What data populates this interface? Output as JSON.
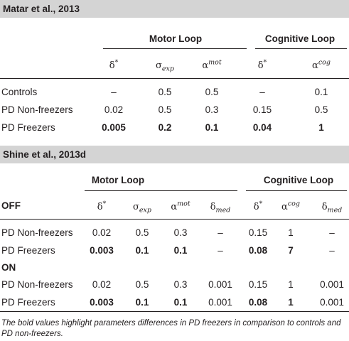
{
  "study1": {
    "title": "Matar et al., 2013",
    "group_motor": "Motor Loop",
    "group_cog": "Cognitive Loop",
    "headers": [
      {
        "base": "δ",
        "sup": "*",
        "sub": ""
      },
      {
        "base": "σ",
        "sup": "",
        "sub": "exp"
      },
      {
        "base": "α",
        "sup": "mot",
        "sub": ""
      },
      {
        "base": "δ",
        "sup": "*",
        "sub": ""
      },
      {
        "base": "α",
        "sup": "cog",
        "sub": ""
      }
    ],
    "rows": [
      {
        "label": "Controls",
        "values": [
          "–",
          "0.5",
          "0.5",
          "–",
          "0.1"
        ],
        "bold": [
          false,
          false,
          false,
          false,
          false
        ]
      },
      {
        "label": "PD Non-freezers",
        "values": [
          "0.02",
          "0.5",
          "0.3",
          "0.15",
          "0.5"
        ],
        "bold": [
          false,
          false,
          false,
          false,
          false
        ]
      },
      {
        "label": "PD Freezers",
        "values": [
          "0.005",
          "0.2",
          "0.1",
          "0.04",
          "1"
        ],
        "bold": [
          true,
          true,
          true,
          true,
          true
        ]
      }
    ]
  },
  "study2": {
    "title": "Shine et al., 2013d",
    "group_motor": "Motor Loop",
    "group_cog": "Cognitive Loop",
    "headers": [
      {
        "base": "δ",
        "sup": "*",
        "sub": ""
      },
      {
        "base": "σ",
        "sup": "",
        "sub": "exp"
      },
      {
        "base": "α",
        "sup": "mot",
        "sub": ""
      },
      {
        "base": "δ",
        "sup": "",
        "sub": "med"
      },
      {
        "base": "δ",
        "sup": "*",
        "sub": ""
      },
      {
        "base": "α",
        "sup": "cog",
        "sub": ""
      },
      {
        "base": "δ",
        "sup": "",
        "sub": "med"
      }
    ],
    "off_label": "OFF",
    "on_label": "ON",
    "off_rows": [
      {
        "label": "PD Non-freezers",
        "values": [
          "0.02",
          "0.5",
          "0.3",
          "–",
          "0.15",
          "1",
          "–"
        ],
        "bold": [
          false,
          false,
          false,
          false,
          false,
          false,
          false
        ]
      },
      {
        "label": "PD Freezers",
        "values": [
          "0.003",
          "0.1",
          "0.1",
          "–",
          "0.08",
          "7",
          "–"
        ],
        "bold": [
          true,
          true,
          true,
          false,
          true,
          true,
          false
        ]
      }
    ],
    "on_rows": [
      {
        "label": "PD Non-freezers",
        "values": [
          "0.02",
          "0.5",
          "0.3",
          "0.001",
          "0.15",
          "1",
          "0.001"
        ],
        "bold": [
          false,
          false,
          false,
          false,
          false,
          false,
          false
        ]
      },
      {
        "label": "PD Freezers",
        "values": [
          "0.003",
          "0.1",
          "0.1",
          "0.001",
          "0.08",
          "1",
          "0.001"
        ],
        "bold": [
          true,
          true,
          true,
          false,
          true,
          true,
          false
        ]
      }
    ]
  },
  "footnote": "The bold values highlight parameters differences in PD freezers in comparison to controls and PD non-freezers."
}
